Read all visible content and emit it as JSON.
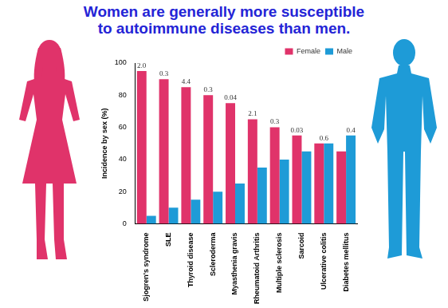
{
  "chart_data": {
    "type": "bar",
    "title": [
      "Women are generally more susceptible",
      "to autoimmune diseases than men."
    ],
    "y_label": "Incidence by sex (%)",
    "categories": [
      "Sjogren's syndrome",
      "SLE",
      "Thyroid disease",
      "Scleroderma",
      "Myasthenia gravis",
      "Rheumatoid Arthritis",
      "Multiple sclerosis",
      "Sarcoid",
      "Ulcerative colitis",
      "Diabetes mellitus"
    ],
    "series": [
      {
        "name": "Female",
        "color": "#e0336a",
        "values": [
          95,
          90,
          85,
          80,
          75,
          65,
          60,
          55,
          50,
          45
        ]
      },
      {
        "name": "Male",
        "color": "#1e9bd7",
        "values": [
          5,
          10,
          15,
          20,
          25,
          35,
          40,
          45,
          50,
          55
        ]
      }
    ],
    "annotations": [
      "2.0",
      "0.3",
      "4.4",
      "0.3",
      "0.04",
      "2.1",
      "0.3",
      "0.03",
      "0.6",
      "0.4"
    ],
    "ylim": [
      0,
      100
    ],
    "yticks": [
      0,
      20,
      40,
      60,
      80,
      100
    ],
    "grid": false,
    "legend": "upper right"
  }
}
